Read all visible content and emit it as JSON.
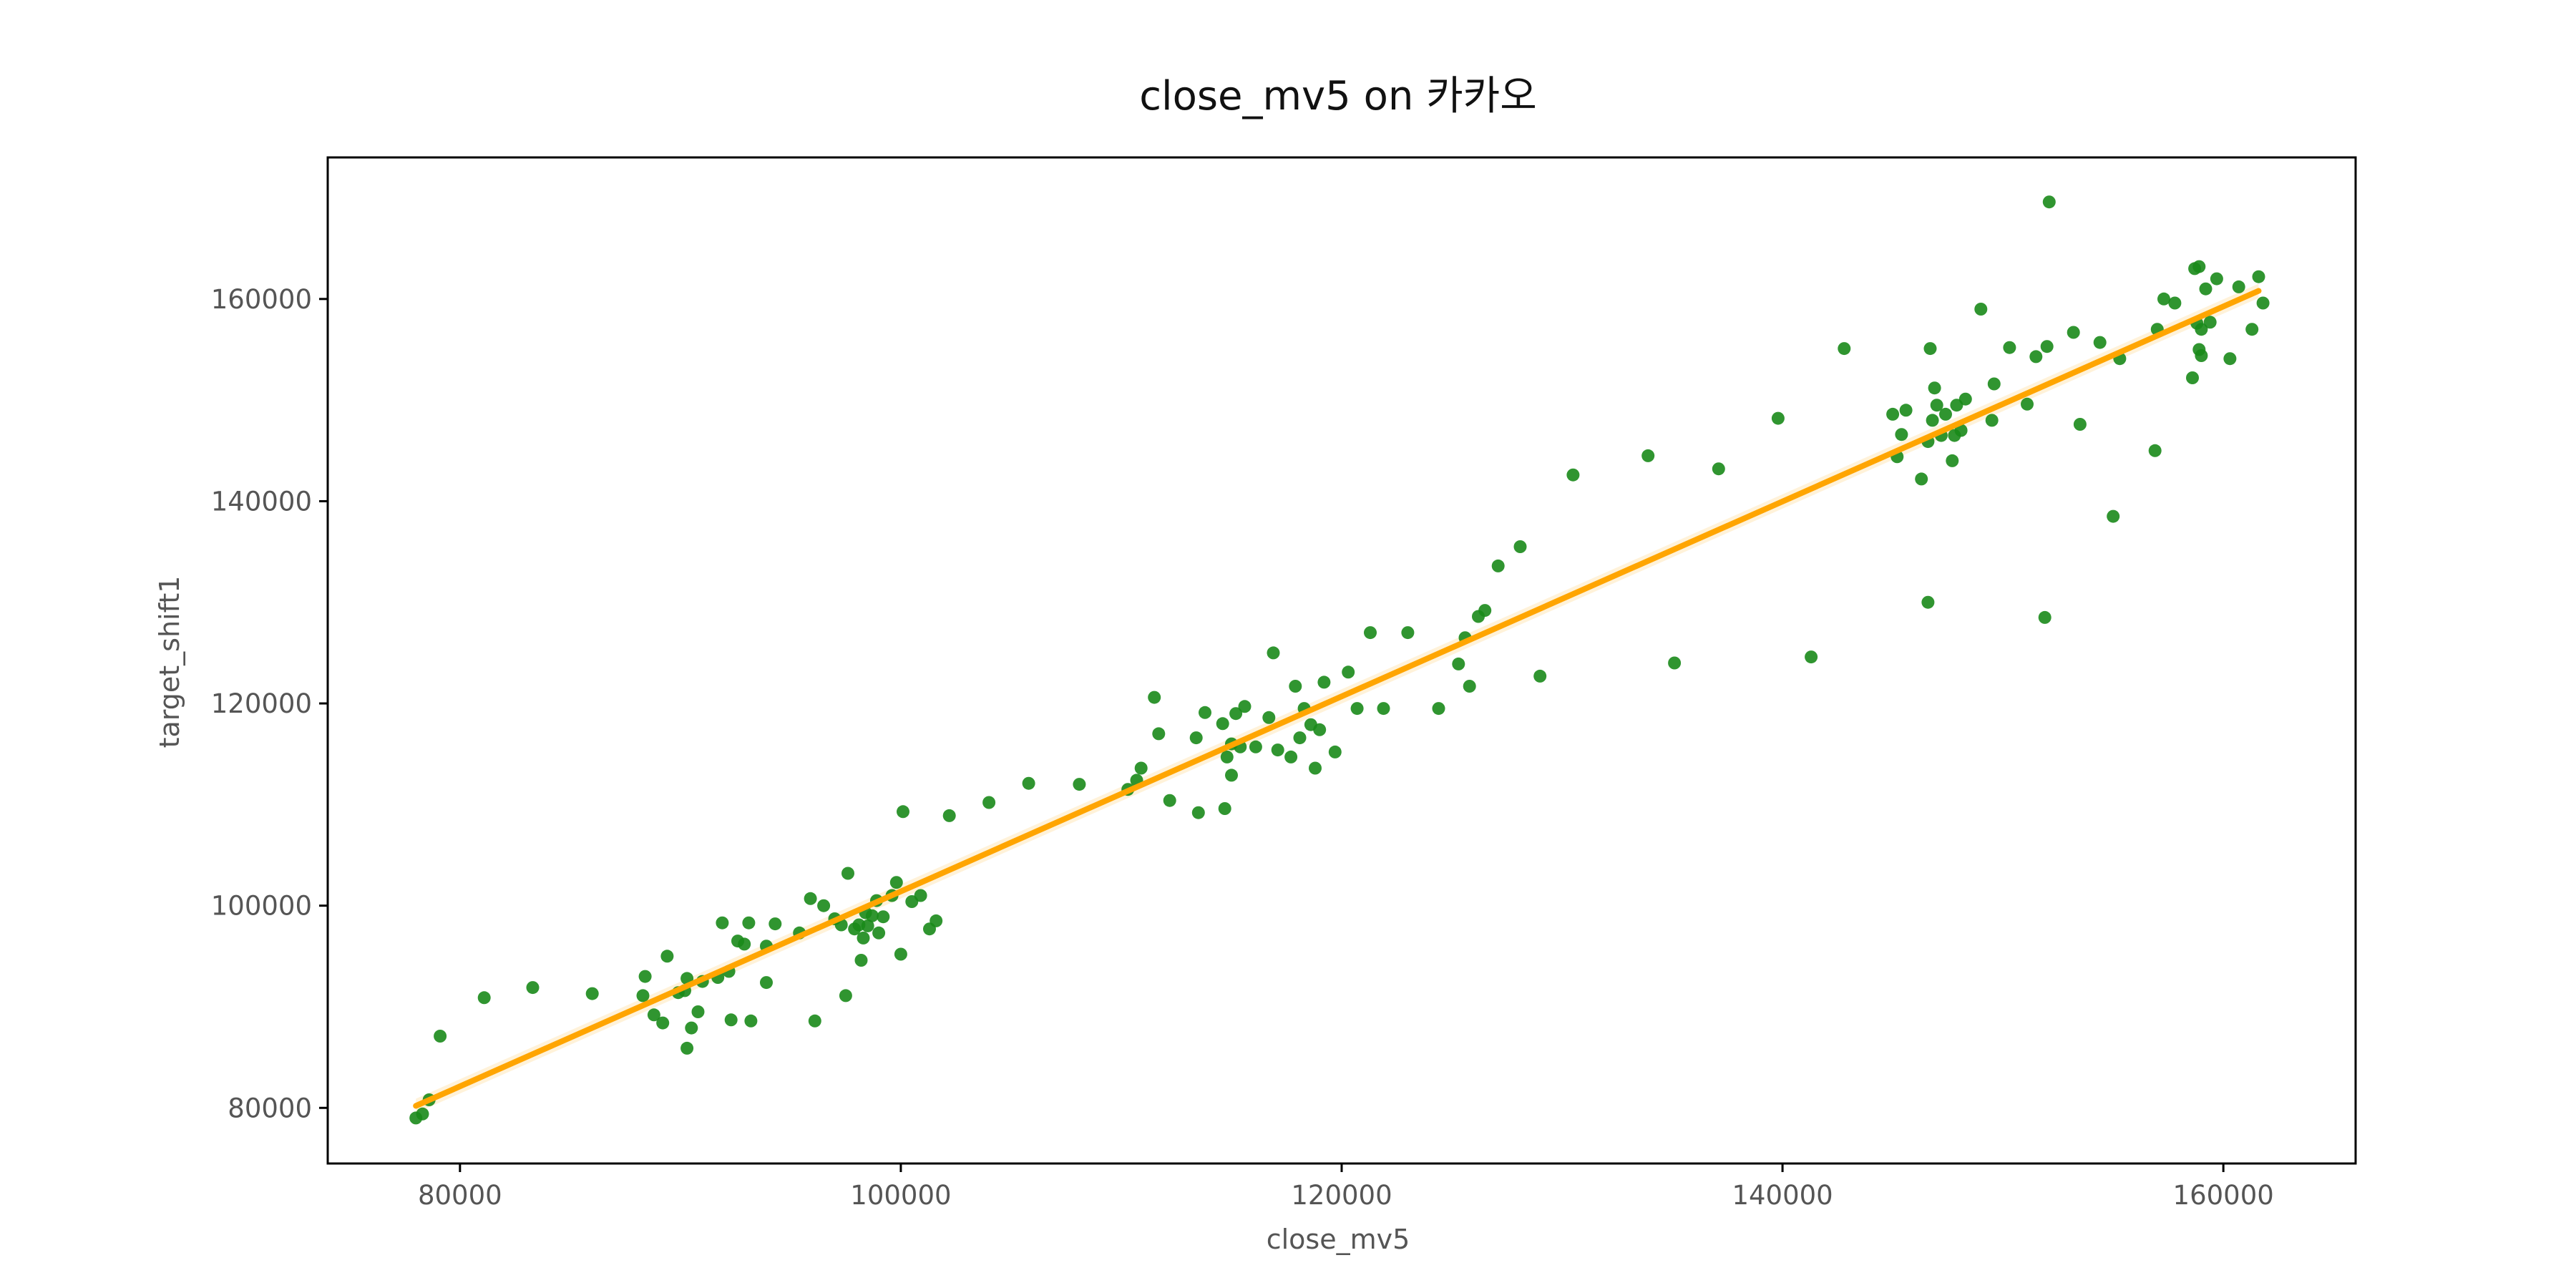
{
  "chart_data": {
    "type": "scatter",
    "title": "close_mv5 on 카카오",
    "xlabel": "close_mv5",
    "ylabel": "target_shift1",
    "xlim": [
      74000,
      166000
    ],
    "ylim": [
      74500,
      174000
    ],
    "xticks": [
      80000,
      100000,
      120000,
      140000,
      160000
    ],
    "yticks": [
      80000,
      100000,
      120000,
      140000,
      160000
    ],
    "grid": false,
    "legend": "none",
    "point_color": "#1a8a1a",
    "line_color": "#ffa500",
    "regression": {
      "x": [
        78000,
        161600
      ],
      "y": [
        80200,
        160800
      ]
    },
    "points": [
      [
        78000,
        79000
      ],
      [
        78300,
        79400
      ],
      [
        78600,
        80800
      ],
      [
        79100,
        87100
      ],
      [
        81100,
        90900
      ],
      [
        83300,
        91900
      ],
      [
        86000,
        91300
      ],
      [
        88300,
        91100
      ],
      [
        88400,
        93000
      ],
      [
        88800,
        89200
      ],
      [
        89200,
        88400
      ],
      [
        89400,
        95000
      ],
      [
        89900,
        91400
      ],
      [
        90200,
        91600
      ],
      [
        90300,
        92800
      ],
      [
        90500,
        87900
      ],
      [
        90300,
        85900
      ],
      [
        90800,
        89500
      ],
      [
        91000,
        92500
      ],
      [
        91700,
        92900
      ],
      [
        91900,
        98300
      ],
      [
        92200,
        93500
      ],
      [
        92300,
        88700
      ],
      [
        92600,
        96500
      ],
      [
        92900,
        96200
      ],
      [
        93100,
        98300
      ],
      [
        93200,
        88600
      ],
      [
        93900,
        96000
      ],
      [
        93900,
        92400
      ],
      [
        94300,
        98200
      ],
      [
        95400,
        97300
      ],
      [
        95900,
        100700
      ],
      [
        96100,
        88600
      ],
      [
        96500,
        100000
      ],
      [
        97000,
        98700
      ],
      [
        97300,
        98100
      ],
      [
        97500,
        91100
      ],
      [
        97600,
        103200
      ],
      [
        97900,
        97700
      ],
      [
        98100,
        98100
      ],
      [
        98200,
        94600
      ],
      [
        98300,
        96800
      ],
      [
        98400,
        99300
      ],
      [
        98500,
        98000
      ],
      [
        98700,
        99000
      ],
      [
        98900,
        100500
      ],
      [
        99000,
        97300
      ],
      [
        99200,
        98900
      ],
      [
        99600,
        101000
      ],
      [
        99800,
        102300
      ],
      [
        100000,
        95200
      ],
      [
        100100,
        109300
      ],
      [
        100500,
        100400
      ],
      [
        100900,
        101000
      ],
      [
        101300,
        97700
      ],
      [
        101600,
        98500
      ],
      [
        102200,
        108900
      ],
      [
        104000,
        110200
      ],
      [
        105800,
        112100
      ],
      [
        108100,
        112000
      ],
      [
        110300,
        111500
      ],
      [
        110700,
        112400
      ],
      [
        110900,
        113600
      ],
      [
        111500,
        120600
      ],
      [
        111700,
        117000
      ],
      [
        112200,
        110400
      ],
      [
        113400,
        116600
      ],
      [
        113500,
        109200
      ],
      [
        113800,
        119100
      ],
      [
        114600,
        118000
      ],
      [
        114700,
        109600
      ],
      [
        114800,
        114700
      ],
      [
        115000,
        116000
      ],
      [
        115200,
        119000
      ],
      [
        115400,
        115700
      ],
      [
        115000,
        112900
      ],
      [
        115600,
        119700
      ],
      [
        116100,
        115700
      ],
      [
        116700,
        118600
      ],
      [
        116900,
        125000
      ],
      [
        117100,
        115400
      ],
      [
        117700,
        114700
      ],
      [
        117900,
        121700
      ],
      [
        118100,
        116600
      ],
      [
        118300,
        119500
      ],
      [
        118600,
        117900
      ],
      [
        118800,
        113600
      ],
      [
        119000,
        117400
      ],
      [
        119200,
        122100
      ],
      [
        119700,
        115200
      ],
      [
        120300,
        123100
      ],
      [
        120700,
        119500
      ],
      [
        121300,
        127000
      ],
      [
        121900,
        119500
      ],
      [
        123000,
        127000
      ],
      [
        124400,
        119500
      ],
      [
        125300,
        123900
      ],
      [
        125800,
        121700
      ],
      [
        125600,
        126500
      ],
      [
        126200,
        128600
      ],
      [
        126500,
        129200
      ],
      [
        127100,
        133600
      ],
      [
        128100,
        135500
      ],
      [
        129000,
        122700
      ],
      [
        130500,
        142600
      ],
      [
        133900,
        144500
      ],
      [
        135100,
        124000
      ],
      [
        137100,
        143200
      ],
      [
        139800,
        148200
      ],
      [
        141300,
        124600
      ],
      [
        142800,
        155100
      ],
      [
        145000,
        148600
      ],
      [
        145200,
        144400
      ],
      [
        145400,
        146600
      ],
      [
        145600,
        149000
      ],
      [
        146300,
        142200
      ],
      [
        146600,
        145900
      ],
      [
        146600,
        130000
      ],
      [
        146700,
        155100
      ],
      [
        146800,
        148000
      ],
      [
        146900,
        151200
      ],
      [
        147000,
        149500
      ],
      [
        147200,
        146500
      ],
      [
        147400,
        148600
      ],
      [
        147700,
        144000
      ],
      [
        147800,
        146500
      ],
      [
        147900,
        149500
      ],
      [
        148100,
        147000
      ],
      [
        148300,
        150100
      ],
      [
        149000,
        159000
      ],
      [
        149500,
        148000
      ],
      [
        149600,
        151600
      ],
      [
        150300,
        155200
      ],
      [
        151100,
        149600
      ],
      [
        151500,
        154300
      ],
      [
        151900,
        128500
      ],
      [
        152000,
        155300
      ],
      [
        152100,
        169600
      ],
      [
        153200,
        156700
      ],
      [
        153500,
        147600
      ],
      [
        154400,
        155700
      ],
      [
        155000,
        138500
      ],
      [
        155300,
        154100
      ],
      [
        156900,
        145000
      ],
      [
        157000,
        157000
      ],
      [
        157300,
        160000
      ],
      [
        157800,
        159600
      ],
      [
        158600,
        152200
      ],
      [
        158700,
        163000
      ],
      [
        158900,
        163200
      ],
      [
        158900,
        155000
      ],
      [
        159000,
        157000
      ],
      [
        159200,
        161000
      ],
      [
        159400,
        157700
      ],
      [
        159700,
        162000
      ],
      [
        160300,
        154100
      ],
      [
        160700,
        161200
      ],
      [
        161300,
        157000
      ],
      [
        161600,
        162200
      ],
      [
        161800,
        159600
      ],
      [
        159000,
        154400
      ],
      [
        158800,
        157600
      ]
    ]
  }
}
